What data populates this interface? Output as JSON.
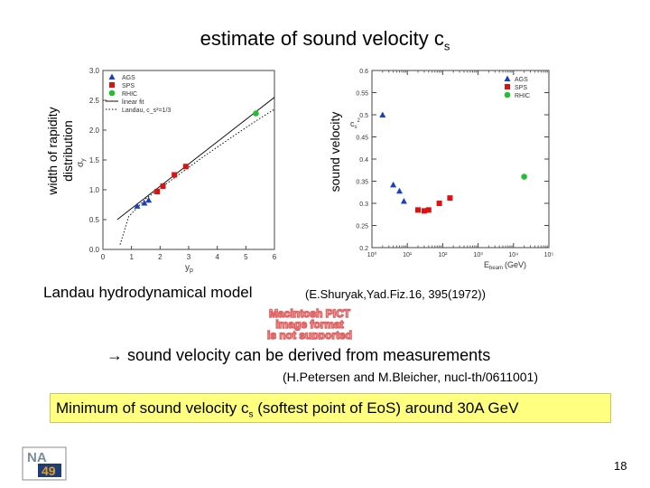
{
  "slide": {
    "title_main": "estimate of sound velocity c",
    "title_sub": "s",
    "left_ylabel_line1": "width of rapidity",
    "left_ylabel_line2": "distribution",
    "right_ylabel": "sound velocity",
    "landau_caption": "Landau hydrodynamical model",
    "shuryak_ref": "(E.Shuryak,Yad.Fiz.16, 395(1972))",
    "pict_line1": "Macintosh PICT",
    "pict_line2": "image format",
    "pict_line3": "is not supported",
    "arrow_text": "→ sound velocity can be derived from measurements",
    "petersen_ref": "(H.Petersen and M.Bleicher, nucl-th/0611001)",
    "conclusion_pre": "Minimum of sound velocity c",
    "conclusion_sub": "s",
    "conclusion_post": " (softest point of EoS) around 30A GeV",
    "page_number": "18",
    "logo_text_top": "NA",
    "logo_text_bottom": "49",
    "colors": {
      "ags": "#1a3fbf",
      "sps": "#e01010",
      "rhic": "#22c030",
      "highlight": "#ffff80"
    }
  },
  "chart_data": [
    {
      "type": "scatter",
      "xlabel": "y",
      "xlabel_sub": "p",
      "ylabel": "σ",
      "ylabel_sub": "y",
      "xlim": [
        0,
        6
      ],
      "ylim": [
        0,
        3
      ],
      "xticks": [
        "0",
        "1",
        "2",
        "3",
        "4",
        "5",
        "6"
      ],
      "yticks": [
        "0.0",
        "0.5",
        "1.0",
        "1.5",
        "2.0",
        "2.5",
        "3.0"
      ],
      "legend": [
        "AGS",
        "SPS",
        "RHIC",
        "linear fit",
        "Landau, c_s²=1/3"
      ],
      "legend_position": "top-left",
      "series": [
        {
          "name": "AGS",
          "marker": "triangle",
          "x": [
            1.2,
            1.45,
            1.6
          ],
          "y": [
            0.73,
            0.78,
            0.83
          ]
        },
        {
          "name": "SPS",
          "marker": "square",
          "x": [
            1.9,
            2.1,
            2.5,
            2.9
          ],
          "y": [
            0.97,
            1.06,
            1.25,
            1.39
          ]
        },
        {
          "name": "RHIC",
          "marker": "circle",
          "x": [
            5.35
          ],
          "y": [
            2.28
          ]
        },
        {
          "name": "linear fit",
          "style": "solid",
          "x": [
            0.5,
            6.0
          ],
          "y": [
            0.5,
            2.55
          ]
        },
        {
          "name": "Landau, c_s²=1/3",
          "style": "dotted",
          "x": [
            0.6,
            0.9,
            1.5,
            2.5,
            3.5,
            4.5,
            5.5,
            6.0
          ],
          "y": [
            0.08,
            0.55,
            0.85,
            1.2,
            1.55,
            1.88,
            2.2,
            2.35
          ]
        }
      ]
    },
    {
      "type": "scatter",
      "xlabel": "E",
      "xlabel_sub": "beam",
      "xlabel_unit": "(GeV)",
      "ylabel": "c",
      "ylabel_sub": "s",
      "ylabel_sup": "2",
      "xscale": "log",
      "xlim": [
        1,
        100000
      ],
      "ylim": [
        0.2,
        0.6
      ],
      "xticks": [
        "10⁰",
        "10¹",
        "10²",
        "10³",
        "10⁴",
        "10⁵"
      ],
      "yticks": [
        "0.2",
        "0.25",
        "0.3",
        "0.35",
        "0.4",
        "0.45",
        "0.5",
        "0.55",
        "0.6"
      ],
      "legend": [
        "AGS",
        "SPS",
        "RHIC"
      ],
      "legend_position": "top-right",
      "series": [
        {
          "name": "AGS",
          "marker": "triangle",
          "x": [
            2,
            4,
            6,
            8
          ],
          "y": [
            0.5,
            0.342,
            0.328,
            0.305
          ]
        },
        {
          "name": "SPS",
          "marker": "square",
          "x": [
            20,
            30,
            40,
            80,
            160
          ],
          "y": [
            0.285,
            0.283,
            0.285,
            0.3,
            0.312
          ]
        },
        {
          "name": "RHIC",
          "marker": "circle",
          "x": [
            20000
          ],
          "y": [
            0.36
          ]
        }
      ]
    }
  ]
}
